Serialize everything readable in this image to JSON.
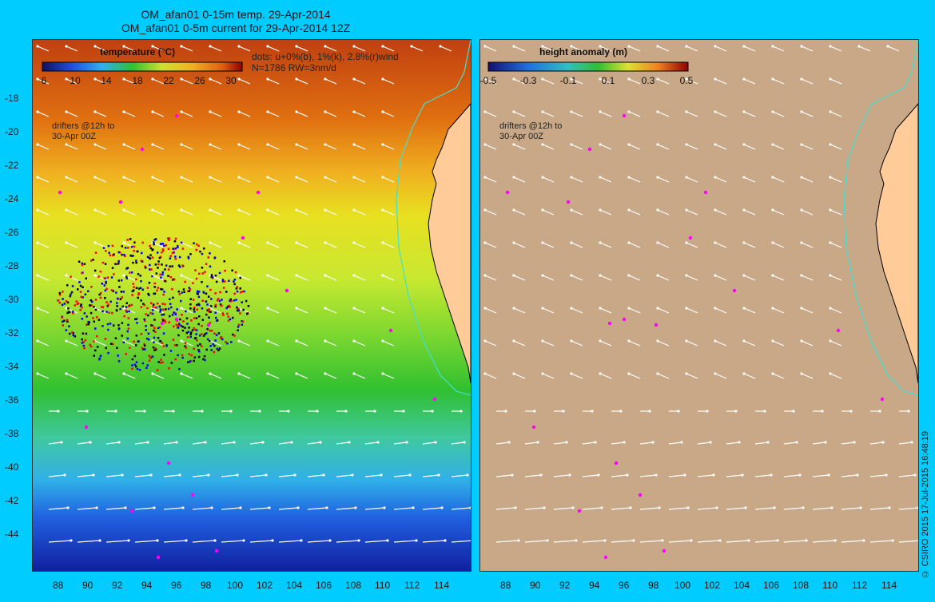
{
  "title_line1": "OM_afan01 0-15m temp. 29-Apr-2014",
  "title_line2": "OM_afan01 0-5m current for 29-Apr-2014 12Z",
  "left_panel": {
    "colorbar_title": "temperature (°C)",
    "colorbar_ticks": [
      "6",
      "10",
      "14",
      "18",
      "22",
      "26",
      "30"
    ],
    "dots_legend_line1": "dots: u+0%(b), 1%(k), 2.8%(r)wind",
    "dots_legend_line2": "N=1786 RW=3nm/d",
    "drifters_line1": "drifters @12h to",
    "drifters_line2": "30-Apr 00Z"
  },
  "right_panel": {
    "colorbar_title": "height anomaly (m)",
    "colorbar_ticks": [
      "-0.5",
      "-0.3",
      "-0.1",
      "0.1",
      "0.3",
      "0.5"
    ],
    "drifters_line1": "drifters @12h to",
    "drifters_line2": "30-Apr 00Z"
  },
  "lat_ticks": [
    "-18",
    "-20",
    "-22",
    "-24",
    "-26",
    "-28",
    "-30",
    "-32",
    "-34",
    "-36",
    "-38",
    "-40",
    "-42",
    "-44"
  ],
  "lon_ticks": [
    "88",
    "90",
    "92",
    "94",
    "96",
    "98",
    "100",
    "102",
    "104",
    "106",
    "108",
    "110",
    "112",
    "114"
  ],
  "credit": "© CSIRO 2015   17-Jul-2015 16:48:19",
  "colors": {
    "background": "#00ccff",
    "ssh_panel": "#c9a888",
    "land": "#ffcc99",
    "coast_contour": "#40e0d0",
    "drifter": "#ff00ff",
    "current_arrow": "#ffffff"
  }
}
